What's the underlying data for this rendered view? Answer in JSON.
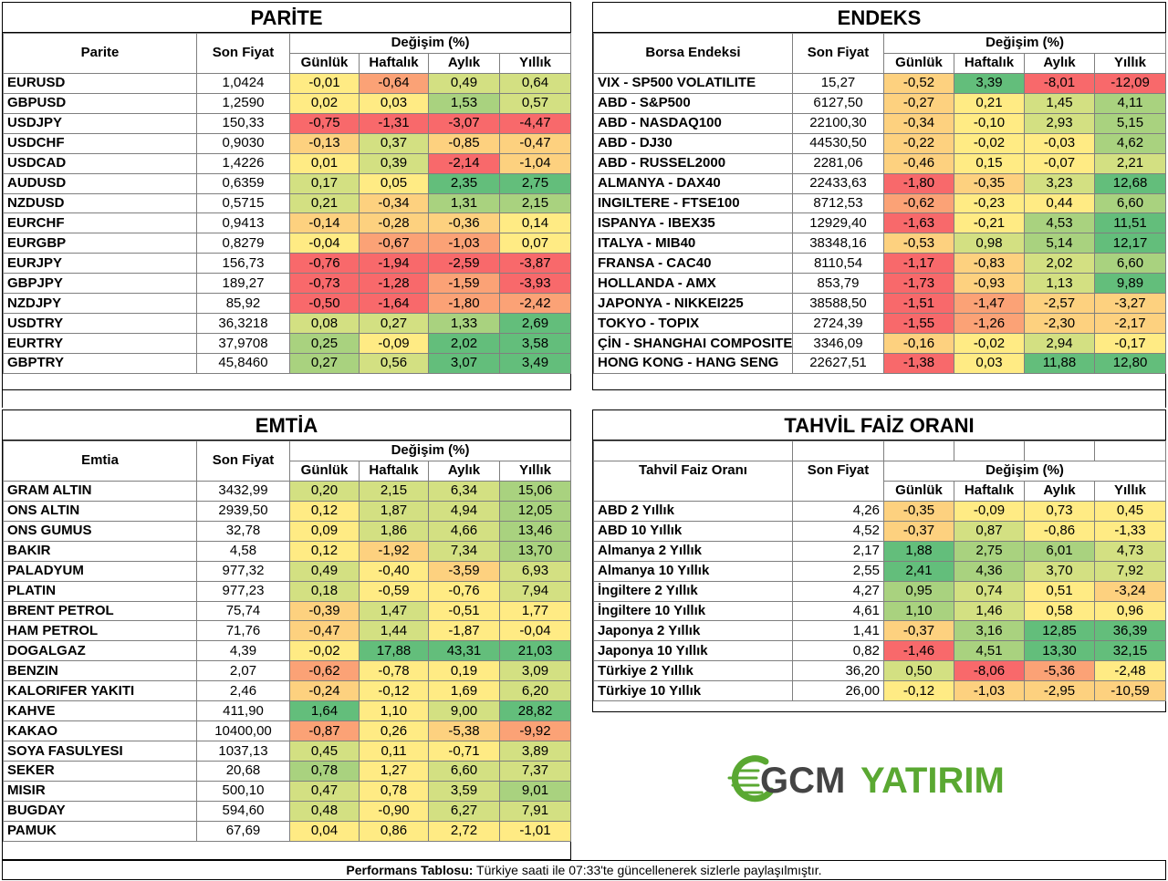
{
  "colors": {
    "neg_strong": "#f8696b",
    "neg_mid": "#fba276",
    "neg_light": "#fdd17f",
    "neutral": "#ffeb84",
    "pos_light": "#d3e082",
    "pos_mid": "#a9d27f",
    "pos_strong": "#63be7b"
  },
  "change_header": "Değişim (%)",
  "periods": [
    "Günlük",
    "Haftalık",
    "Aylık",
    "Yıllık"
  ],
  "price_header": "Son Fiyat",
  "parite": {
    "title": "PARİTE",
    "name_header": "Parite",
    "rows": [
      {
        "name": "EURUSD",
        "price": "1,0424",
        "d": "-0,01",
        "w": "-0,64",
        "m": "0,49",
        "y": "0,64"
      },
      {
        "name": "GBPUSD",
        "price": "1,2590",
        "d": "0,02",
        "w": "0,03",
        "m": "1,53",
        "y": "0,57"
      },
      {
        "name": "USDJPY",
        "price": "150,33",
        "d": "-0,75",
        "w": "-1,31",
        "m": "-3,07",
        "y": "-4,47"
      },
      {
        "name": "USDCHF",
        "price": "0,9030",
        "d": "-0,13",
        "w": "0,37",
        "m": "-0,85",
        "y": "-0,47"
      },
      {
        "name": "USDCAD",
        "price": "1,4226",
        "d": "0,01",
        "w": "0,39",
        "m": "-2,14",
        "y": "-1,04"
      },
      {
        "name": "AUDUSD",
        "price": "0,6359",
        "d": "0,17",
        "w": "0,05",
        "m": "2,35",
        "y": "2,75"
      },
      {
        "name": "NZDUSD",
        "price": "0,5715",
        "d": "0,21",
        "w": "-0,34",
        "m": "1,31",
        "y": "2,15"
      },
      {
        "name": "EURCHF",
        "price": "0,9413",
        "d": "-0,14",
        "w": "-0,28",
        "m": "-0,36",
        "y": "0,14"
      },
      {
        "name": "EURGBP",
        "price": "0,8279",
        "d": "-0,04",
        "w": "-0,67",
        "m": "-1,03",
        "y": "0,07"
      },
      {
        "name": "EURJPY",
        "price": "156,73",
        "d": "-0,76",
        "w": "-1,94",
        "m": "-2,59",
        "y": "-3,87"
      },
      {
        "name": "GBPJPY",
        "price": "189,27",
        "d": "-0,73",
        "w": "-1,28",
        "m": "-1,59",
        "y": "-3,93"
      },
      {
        "name": "NZDJPY",
        "price": "85,92",
        "d": "-0,50",
        "w": "-1,64",
        "m": "-1,80",
        "y": "-2,42"
      },
      {
        "name": "USDTRY",
        "price": "36,3218",
        "d": "0,08",
        "w": "0,27",
        "m": "1,33",
        "y": "2,69"
      },
      {
        "name": "EURTRY",
        "price": "37,9708",
        "d": "0,25",
        "w": "-0,09",
        "m": "2,02",
        "y": "3,58"
      },
      {
        "name": "GBPTRY",
        "price": "45,8460",
        "d": "0,27",
        "w": "0,56",
        "m": "3,07",
        "y": "3,49"
      }
    ]
  },
  "endeks": {
    "title": "ENDEKS",
    "name_header": "Borsa Endeksi",
    "rows": [
      {
        "name": "VIX  - SP500 VOLATILITE",
        "price": "15,27",
        "d": "-0,52",
        "w": "3,39",
        "m": "-8,01",
        "y": "-12,09"
      },
      {
        "name": "ABD - S&P500",
        "price": "6127,50",
        "d": "-0,27",
        "w": "0,21",
        "m": "1,45",
        "y": "4,11"
      },
      {
        "name": "ABD - NASDAQ100",
        "price": "22100,30",
        "d": "-0,34",
        "w": "-0,10",
        "m": "2,93",
        "y": "5,15"
      },
      {
        "name": "ABD - DJ30",
        "price": "44530,50",
        "d": "-0,22",
        "w": "-0,02",
        "m": "-0,03",
        "y": "4,62"
      },
      {
        "name": "ABD - RUSSEL2000",
        "price": "2281,06",
        "d": "-0,46",
        "w": "0,15",
        "m": "-0,07",
        "y": "2,21"
      },
      {
        "name": "ALMANYA - DAX40",
        "price": "22433,63",
        "d": "-1,80",
        "w": "-0,35",
        "m": "3,23",
        "y": "12,68"
      },
      {
        "name": "INGILTERE - FTSE100",
        "price": "8712,53",
        "d": "-0,62",
        "w": "-0,23",
        "m": "0,44",
        "y": "6,60"
      },
      {
        "name": "ISPANYA - IBEX35",
        "price": "12929,40",
        "d": "-1,63",
        "w": "-0,21",
        "m": "4,53",
        "y": "11,51"
      },
      {
        "name": "ITALYA - MIB40",
        "price": "38348,16",
        "d": "-0,53",
        "w": "0,98",
        "m": "5,14",
        "y": "12,17"
      },
      {
        "name": "FRANSA - CAC40",
        "price": "8110,54",
        "d": "-1,17",
        "w": "-0,83",
        "m": "2,02",
        "y": "6,60"
      },
      {
        "name": "HOLLANDA - AMX",
        "price": "853,79",
        "d": "-1,73",
        "w": "-0,93",
        "m": "1,13",
        "y": "9,89"
      },
      {
        "name": "JAPONYA - NIKKEI225",
        "price": "38588,50",
        "d": "-1,51",
        "w": "-1,47",
        "m": "-2,57",
        "y": "-3,27"
      },
      {
        "name": "TOKYO - TOPIX",
        "price": "2724,39",
        "d": "-1,55",
        "w": "-1,26",
        "m": "-2,30",
        "y": "-2,17"
      },
      {
        "name": "ÇİN - SHANGHAI COMPOSITE",
        "price": "3346,09",
        "d": "-0,16",
        "w": "-0,02",
        "m": "2,94",
        "y": "-0,17"
      },
      {
        "name": "HONG KONG - HANG SENG",
        "price": "22627,51",
        "d": "-1,38",
        "w": "0,03",
        "m": "11,88",
        "y": "12,80"
      }
    ]
  },
  "emtia": {
    "title": "EMTİA",
    "name_header": "Emtia",
    "rows": [
      {
        "name": "GRAM ALTIN",
        "price": "3432,99",
        "d": "0,20",
        "w": "2,15",
        "m": "6,34",
        "y": "15,06"
      },
      {
        "name": "ONS ALTIN",
        "price": "2939,50",
        "d": "0,12",
        "w": "1,87",
        "m": "4,94",
        "y": "12,05"
      },
      {
        "name": "ONS GUMUS",
        "price": "32,78",
        "d": "0,09",
        "w": "1,86",
        "m": "4,66",
        "y": "13,46"
      },
      {
        "name": "BAKIR",
        "price": "4,58",
        "d": "0,12",
        "w": "-1,92",
        "m": "7,34",
        "y": "13,70"
      },
      {
        "name": "PALADYUM",
        "price": "977,32",
        "d": "0,49",
        "w": "-0,40",
        "m": "-3,59",
        "y": "6,93"
      },
      {
        "name": "PLATIN",
        "price": "977,23",
        "d": "0,18",
        "w": "-0,59",
        "m": "-0,76",
        "y": "7,94"
      },
      {
        "name": "BRENT PETROL",
        "price": "75,74",
        "d": "-0,39",
        "w": "1,47",
        "m": "-0,51",
        "y": "1,77"
      },
      {
        "name": "HAM PETROL",
        "price": "71,76",
        "d": "-0,47",
        "w": "1,44",
        "m": "-1,87",
        "y": "-0,04"
      },
      {
        "name": "DOGALGAZ",
        "price": "4,39",
        "d": "-0,02",
        "w": "17,88",
        "m": "43,31",
        "y": "21,03"
      },
      {
        "name": "BENZIN",
        "price": "2,07",
        "d": "-0,62",
        "w": "-0,78",
        "m": "0,19",
        "y": "3,09"
      },
      {
        "name": "KALORIFER YAKITI",
        "price": "2,46",
        "d": "-0,24",
        "w": "-0,12",
        "m": "1,69",
        "y": "6,20"
      },
      {
        "name": "KAHVE",
        "price": "411,90",
        "d": "1,64",
        "w": "1,10",
        "m": "9,00",
        "y": "28,82"
      },
      {
        "name": "KAKAO",
        "price": "10400,00",
        "d": "-0,87",
        "w": "0,26",
        "m": "-5,38",
        "y": "-9,92"
      },
      {
        "name": "SOYA FASULYESI",
        "price": "1037,13",
        "d": "0,45",
        "w": "0,11",
        "m": "-0,71",
        "y": "3,89"
      },
      {
        "name": "SEKER",
        "price": "20,68",
        "d": "0,78",
        "w": "1,27",
        "m": "6,60",
        "y": "7,37"
      },
      {
        "name": "MISIR",
        "price": "500,10",
        "d": "0,47",
        "w": "0,78",
        "m": "3,59",
        "y": "9,01"
      },
      {
        "name": "BUGDAY",
        "price": "594,60",
        "d": "0,48",
        "w": "-0,90",
        "m": "6,27",
        "y": "7,91"
      },
      {
        "name": "PAMUK",
        "price": "67,69",
        "d": "0,04",
        "w": "0,86",
        "m": "2,72",
        "y": "-1,01"
      }
    ]
  },
  "tahvil": {
    "title": "TAHVİL FAİZ ORANI",
    "name_header": "Tahvil Faiz Oranı",
    "rows": [
      {
        "name": "ABD 2 Yıllık",
        "price": "4,26",
        "d": "-0,35",
        "w": "-0,09",
        "m": "0,73",
        "y": "0,45"
      },
      {
        "name": "ABD 10 Yıllık",
        "price": "4,52",
        "d": "-0,37",
        "w": "0,87",
        "m": "-0,86",
        "y": "-1,33"
      },
      {
        "name": "Almanya 2 Yıllık",
        "price": "2,17",
        "d": "1,88",
        "w": "2,75",
        "m": "6,01",
        "y": "4,73"
      },
      {
        "name": "Almanya 10 Yıllık",
        "price": "2,55",
        "d": "2,41",
        "w": "4,36",
        "m": "3,70",
        "y": "7,92"
      },
      {
        "name": "İngiltere 2 Yıllık",
        "price": "4,27",
        "d": "0,95",
        "w": "0,74",
        "m": "0,51",
        "y": "-3,24"
      },
      {
        "name": "İngiltere 10 Yıllık",
        "price": "4,61",
        "d": "1,10",
        "w": "1,46",
        "m": "0,58",
        "y": "0,96"
      },
      {
        "name": "Japonya 2 Yıllık",
        "price": "1,41",
        "d": "-0,37",
        "w": "3,16",
        "m": "12,85",
        "y": "36,39"
      },
      {
        "name": "Japonya 10 Yıllık",
        "price": "0,82",
        "d": "-1,46",
        "w": "4,51",
        "m": "13,30",
        "y": "32,15"
      },
      {
        "name": "Türkiye 2 Yıllık",
        "price": "36,20",
        "d": "0,50",
        "w": "-8,06",
        "m": "-5,36",
        "y": "-2,48"
      },
      {
        "name": "Türkiye 10 Yıllık",
        "price": "26,00",
        "d": "-0,12",
        "w": "-1,03",
        "m": "-2,95",
        "y": "-10,59"
      }
    ]
  },
  "logo": {
    "part1": "GCM",
    "part2": "YATIRIM",
    "color1": "#444444",
    "color2": "#5aa832"
  },
  "footer": {
    "bold": "Performans Tablosu:",
    "text": " Türkiye saati ile 07:33'te güncellenerek sizlerle paylaşılmıştır."
  }
}
